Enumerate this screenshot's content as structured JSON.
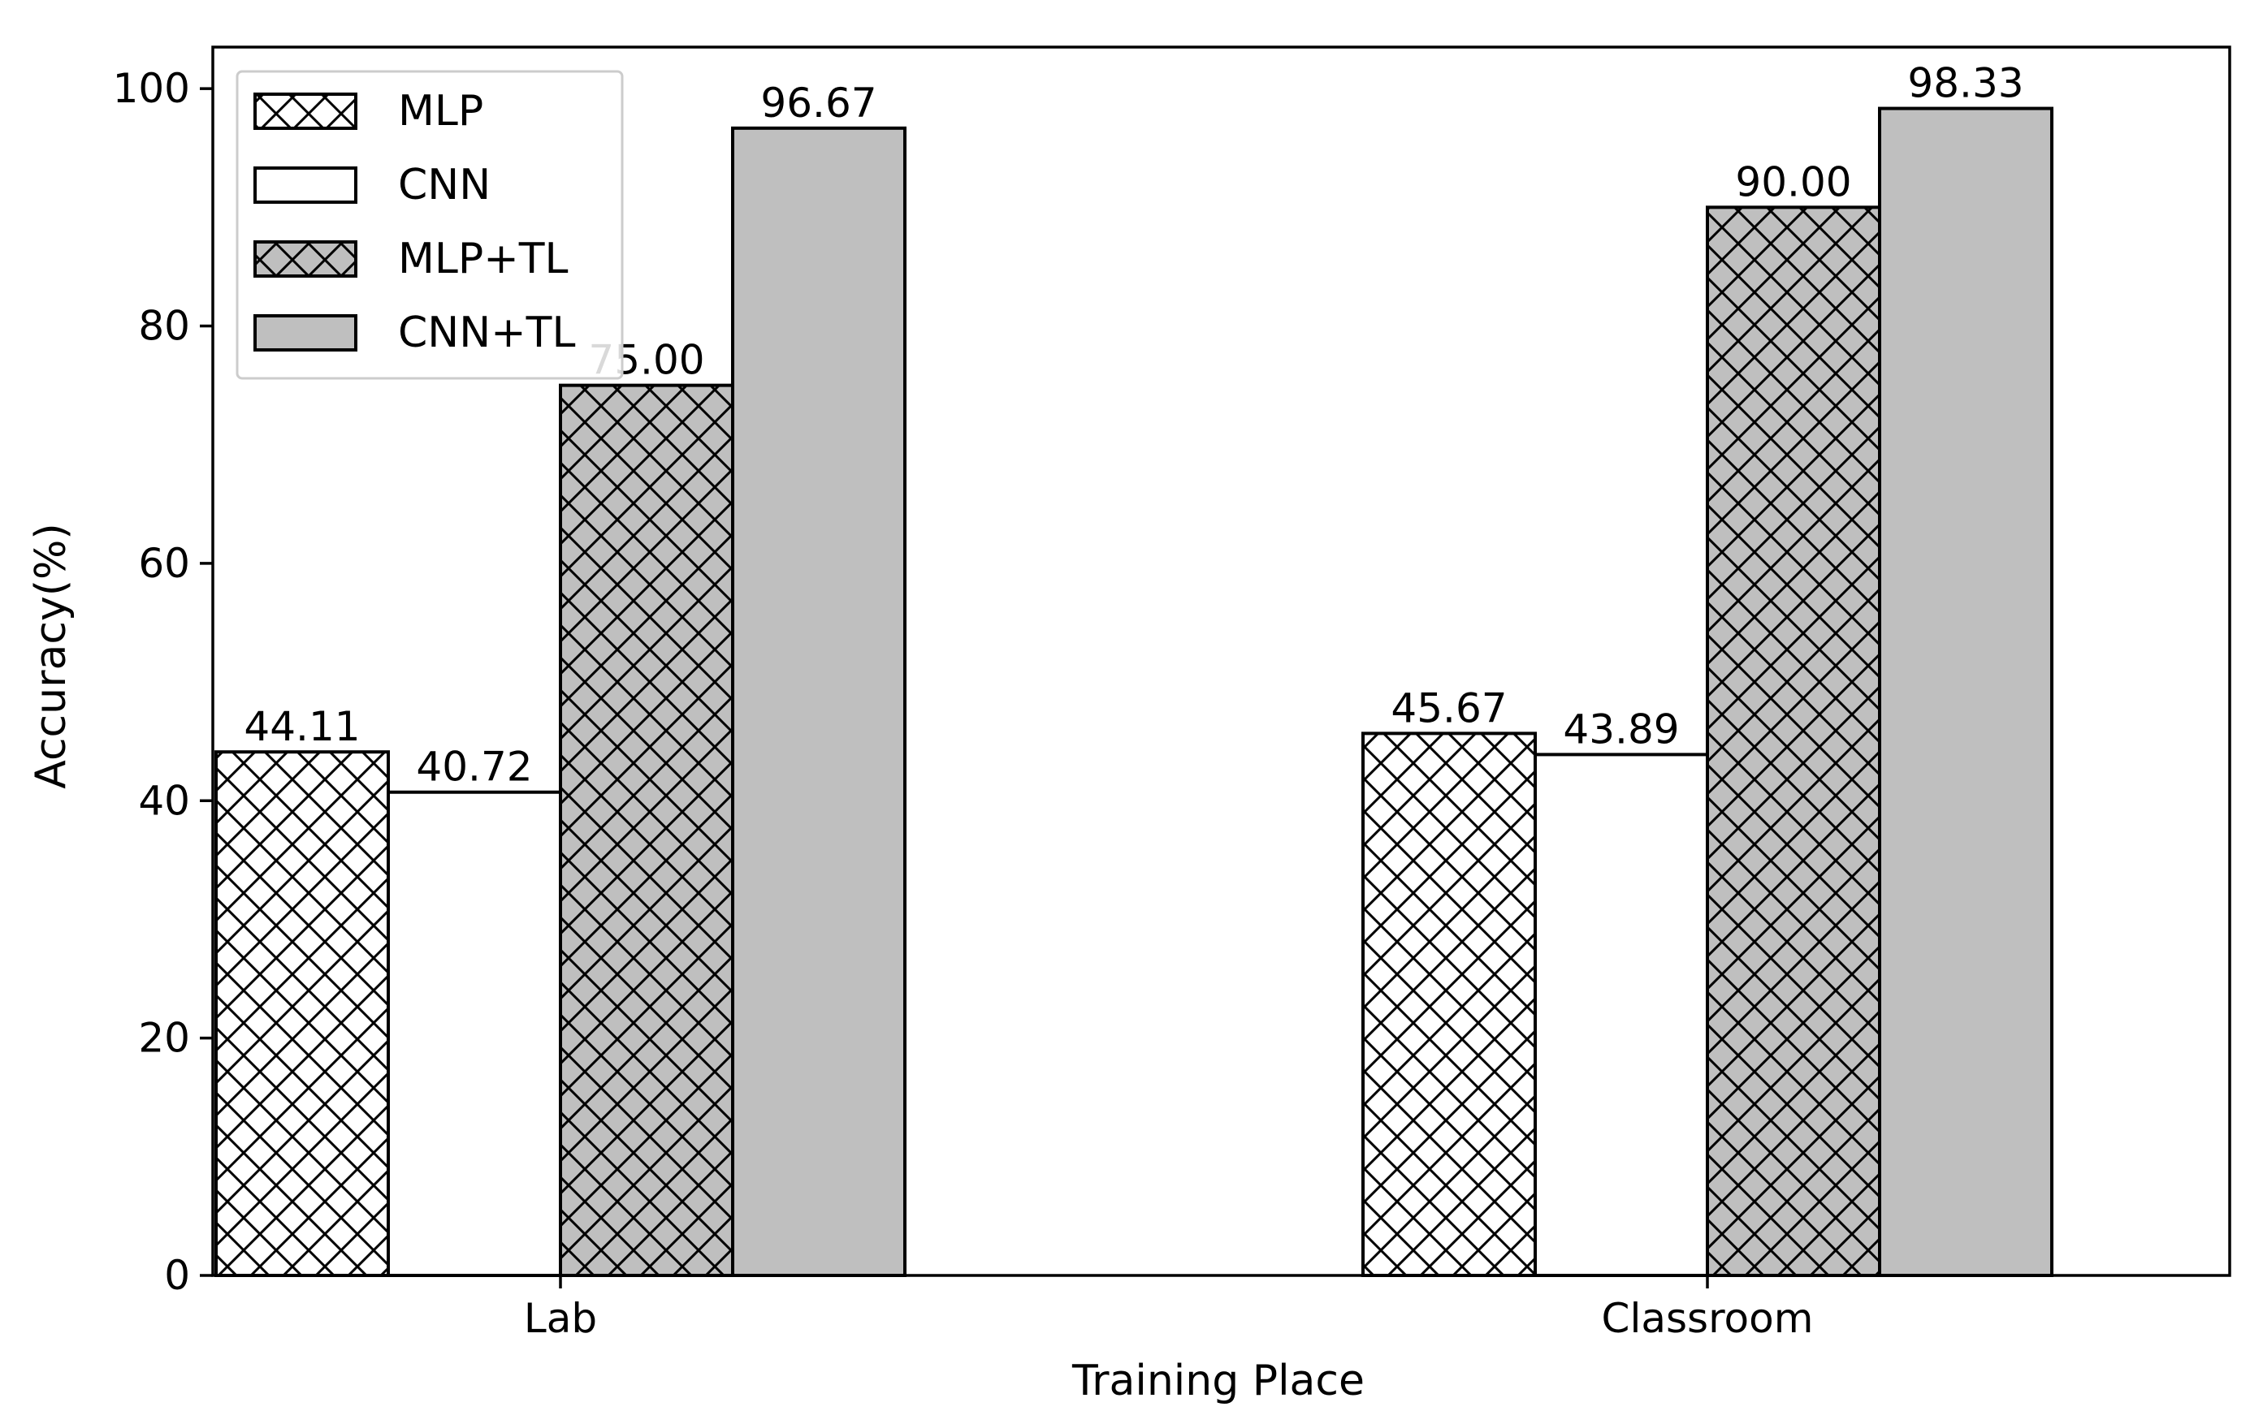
{
  "chart_data": {
    "type": "bar",
    "title": "",
    "xlabel": "Training Place",
    "ylabel": "Accuracy(%)",
    "categories": [
      "Lab",
      "Classroom"
    ],
    "ylim": [
      0,
      103.5
    ],
    "yticks": [
      0,
      20,
      40,
      60,
      80,
      100
    ],
    "grid": false,
    "legend_position": "top-left",
    "series": [
      {
        "name": "MLP",
        "values": [
          44.11,
          45.67
        ],
        "labels": [
          "44.11",
          "45.67"
        ],
        "fill": "#ffffff",
        "hatch": true
      },
      {
        "name": "CNN",
        "values": [
          40.72,
          43.89
        ],
        "labels": [
          "40.72",
          "43.89"
        ],
        "fill": "#ffffff",
        "hatch": false
      },
      {
        "name": "MLP+TL",
        "values": [
          75.0,
          90.0
        ],
        "labels": [
          "75.00",
          "90.00"
        ],
        "fill": "#bfbfbf",
        "hatch": true
      },
      {
        "name": "CNN+TL",
        "values": [
          96.67,
          98.33
        ],
        "labels": [
          "96.67",
          "98.33"
        ],
        "fill": "#bfbfbf",
        "hatch": false
      }
    ]
  }
}
